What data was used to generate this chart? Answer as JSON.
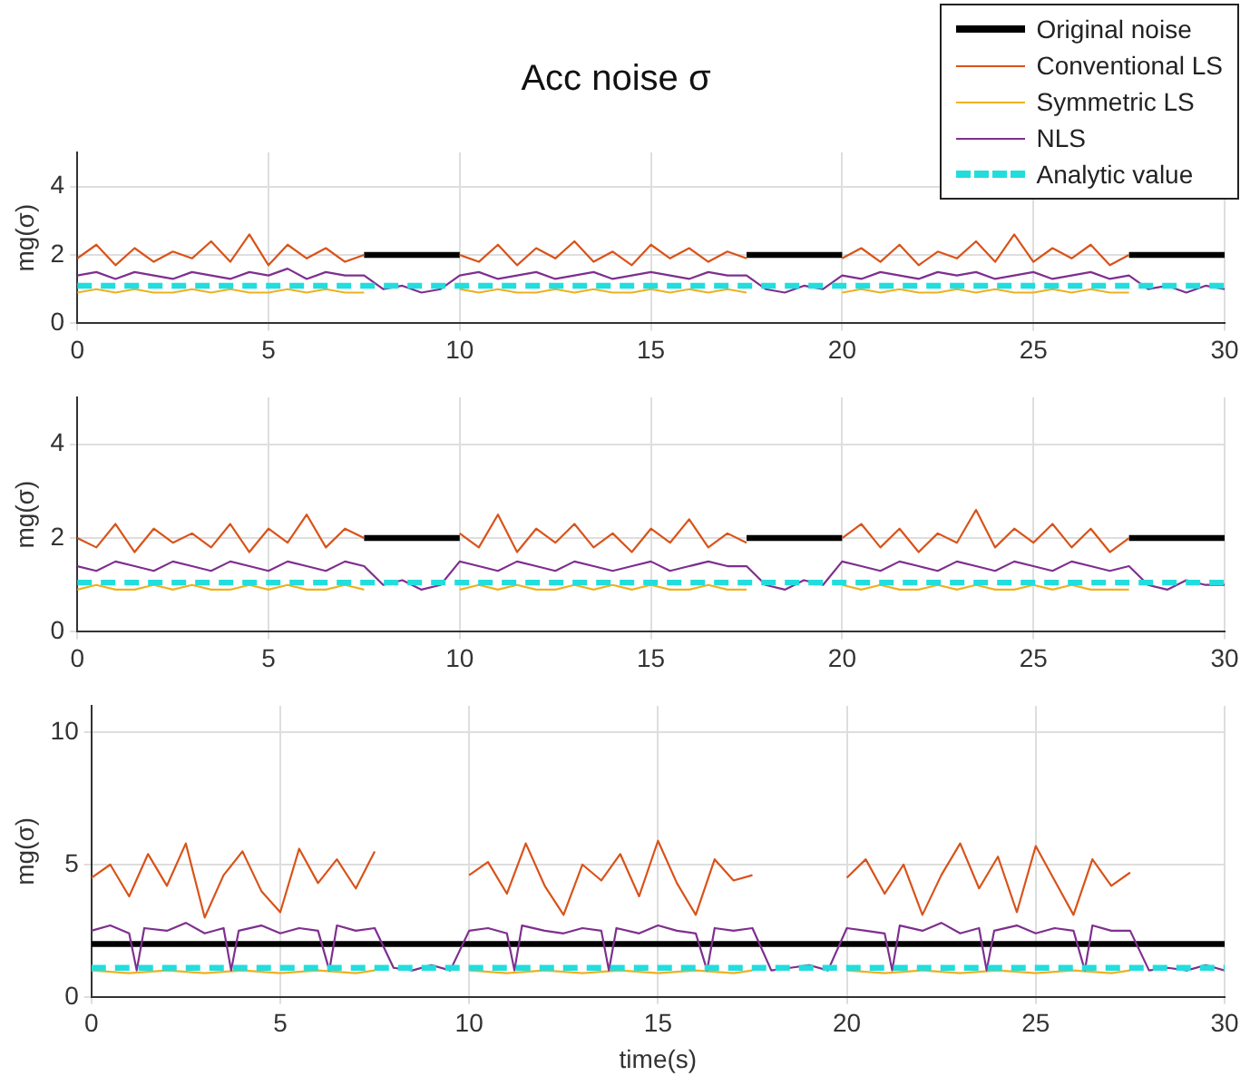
{
  "chart_data": [
    {
      "type": "line",
      "title": "Acc noise σ",
      "ylabel": "mg(σ)",
      "xlim": [
        0,
        30
      ],
      "xticks": [
        0,
        5,
        10,
        15,
        20,
        25,
        30
      ],
      "ylim": [
        0,
        5
      ],
      "yticks": [
        0,
        2,
        4
      ],
      "grid": true,
      "legend": "top right",
      "marker": "none",
      "series": [
        {
          "name": "Original noise",
          "color": "#000000",
          "x": [
            7.5,
            10,
            13.75,
            17.5,
            20,
            23.75,
            27.5,
            30
          ],
          "values": [
            2,
            2,
            null,
            2,
            2,
            null,
            2,
            2
          ]
        },
        {
          "name": "Conventional LS",
          "color": "#d95319",
          "x": [
            0,
            0.5,
            1,
            1.5,
            2,
            2.5,
            3,
            3.5,
            4,
            4.5,
            5,
            5.5,
            6,
            6.5,
            7,
            7.5,
            8.75,
            10,
            10.5,
            11,
            11.5,
            12,
            12.5,
            13,
            13.5,
            14,
            14.5,
            15,
            15.5,
            16,
            16.5,
            17,
            17.5,
            18.75,
            20,
            20.5,
            21,
            21.5,
            22,
            22.5,
            23,
            23.5,
            24,
            24.5,
            25,
            25.5,
            26,
            26.5,
            27,
            27.5
          ],
          "values": [
            1.9,
            2.3,
            1.7,
            2.2,
            1.8,
            2.1,
            1.9,
            2.4,
            1.8,
            2.6,
            1.7,
            2.3,
            1.9,
            2.2,
            1.8,
            2.0,
            null,
            2.0,
            1.8,
            2.3,
            1.7,
            2.2,
            1.9,
            2.4,
            1.8,
            2.1,
            1.7,
            2.3,
            1.9,
            2.2,
            1.8,
            2.1,
            1.9,
            null,
            1.9,
            2.2,
            1.8,
            2.3,
            1.7,
            2.1,
            1.9,
            2.4,
            1.8,
            2.6,
            1.8,
            2.2,
            1.9,
            2.3,
            1.7,
            2.0
          ]
        },
        {
          "name": "Symmetric LS",
          "color": "#edb120",
          "x": [
            0,
            0.5,
            1,
            1.5,
            2,
            2.5,
            3,
            3.5,
            4,
            4.5,
            5,
            5.5,
            6,
            6.5,
            7,
            7.5,
            8.75,
            10,
            10.5,
            11,
            11.5,
            12,
            12.5,
            13,
            13.5,
            14,
            14.5,
            15,
            15.5,
            16,
            16.5,
            17,
            17.5,
            18.75,
            20,
            20.5,
            21,
            21.5,
            22,
            22.5,
            23,
            23.5,
            24,
            24.5,
            25,
            25.5,
            26,
            26.5,
            27,
            27.5
          ],
          "values": [
            0.9,
            1.0,
            0.9,
            1.0,
            0.9,
            0.9,
            1.0,
            0.9,
            1.0,
            0.9,
            0.9,
            1.0,
            0.9,
            1.0,
            0.9,
            0.9,
            null,
            1.0,
            0.9,
            1.0,
            0.9,
            0.9,
            1.0,
            0.9,
            1.0,
            0.9,
            0.9,
            1.0,
            0.9,
            1.0,
            0.9,
            1.0,
            0.9,
            null,
            0.9,
            1.0,
            0.9,
            1.0,
            0.9,
            0.9,
            1.0,
            0.9,
            1.0,
            0.9,
            0.9,
            1.0,
            0.9,
            1.0,
            0.9,
            0.9
          ]
        },
        {
          "name": "NLS",
          "color": "#7e2f8e",
          "x": [
            0,
            0.5,
            1,
            1.5,
            2,
            2.5,
            3,
            3.5,
            4,
            4.5,
            5,
            5.5,
            6,
            6.5,
            7,
            7.5,
            8,
            8.5,
            9,
            9.5,
            10,
            10.5,
            11,
            11.5,
            12,
            12.5,
            13,
            13.5,
            14,
            14.5,
            15,
            15.5,
            16,
            16.5,
            17,
            17.5,
            18,
            18.5,
            19,
            19.5,
            20,
            20.5,
            21,
            21.5,
            22,
            22.5,
            23,
            23.5,
            24,
            24.5,
            25,
            25.5,
            26,
            26.5,
            27,
            27.5,
            28,
            28.5,
            29,
            29.5,
            30
          ],
          "values": [
            1.4,
            1.5,
            1.3,
            1.5,
            1.4,
            1.3,
            1.5,
            1.4,
            1.3,
            1.5,
            1.4,
            1.6,
            1.3,
            1.5,
            1.4,
            1.4,
            1.0,
            1.1,
            0.9,
            1.0,
            1.4,
            1.5,
            1.3,
            1.4,
            1.5,
            1.3,
            1.4,
            1.5,
            1.3,
            1.4,
            1.5,
            1.4,
            1.3,
            1.5,
            1.4,
            1.4,
            1.0,
            0.9,
            1.1,
            1.0,
            1.4,
            1.3,
            1.5,
            1.4,
            1.3,
            1.5,
            1.4,
            1.5,
            1.3,
            1.4,
            1.5,
            1.3,
            1.4,
            1.5,
            1.3,
            1.4,
            1.0,
            1.1,
            0.9,
            1.1,
            1.0
          ]
        },
        {
          "name": "Analytic value",
          "color": "#22dddd",
          "line_style": "dashed",
          "x": [
            0,
            30
          ],
          "values": [
            1.1,
            1.1
          ]
        }
      ]
    },
    {
      "type": "line",
      "ylabel": "mg(σ)",
      "xlim": [
        0,
        30
      ],
      "xticks": [
        0,
        5,
        10,
        15,
        20,
        25,
        30
      ],
      "ylim": [
        0,
        5
      ],
      "yticks": [
        0,
        2,
        4
      ],
      "grid": true,
      "marker": "none",
      "series": [
        {
          "color": "#000000",
          "x": [
            7.5,
            10,
            13.75,
            17.5,
            20,
            23.75,
            27.5,
            30
          ],
          "values": [
            2,
            2,
            null,
            2,
            2,
            null,
            2,
            2
          ]
        },
        {
          "color": "#d95319",
          "x": [
            0,
            0.5,
            1,
            1.5,
            2,
            2.5,
            3,
            3.5,
            4,
            4.5,
            5,
            5.5,
            6,
            6.5,
            7,
            7.5,
            8.75,
            10,
            10.5,
            11,
            11.5,
            12,
            12.5,
            13,
            13.5,
            14,
            14.5,
            15,
            15.5,
            16,
            16.5,
            17,
            17.5,
            18.75,
            20,
            20.5,
            21,
            21.5,
            22,
            22.5,
            23,
            23.5,
            24,
            24.5,
            25,
            25.5,
            26,
            26.5,
            27,
            27.5
          ],
          "values": [
            2.0,
            1.8,
            2.3,
            1.7,
            2.2,
            1.9,
            2.1,
            1.8,
            2.3,
            1.7,
            2.2,
            1.9,
            2.5,
            1.8,
            2.2,
            2.0,
            null,
            2.1,
            1.8,
            2.5,
            1.7,
            2.2,
            1.9,
            2.3,
            1.8,
            2.1,
            1.7,
            2.2,
            1.9,
            2.4,
            1.8,
            2.1,
            1.9,
            null,
            2.0,
            2.3,
            1.8,
            2.2,
            1.7,
            2.1,
            1.9,
            2.6,
            1.8,
            2.2,
            1.9,
            2.3,
            1.8,
            2.2,
            1.7,
            2.0
          ]
        },
        {
          "color": "#edb120",
          "x": [
            0,
            0.5,
            1,
            1.5,
            2,
            2.5,
            3,
            3.5,
            4,
            4.5,
            5,
            5.5,
            6,
            6.5,
            7,
            7.5,
            8.75,
            10,
            10.5,
            11,
            11.5,
            12,
            12.5,
            13,
            13.5,
            14,
            14.5,
            15,
            15.5,
            16,
            16.5,
            17,
            17.5,
            18.75,
            20,
            20.5,
            21,
            21.5,
            22,
            22.5,
            23,
            23.5,
            24,
            24.5,
            25,
            25.5,
            26,
            26.5,
            27,
            27.5
          ],
          "values": [
            0.9,
            1.0,
            0.9,
            0.9,
            1.0,
            0.9,
            1.0,
            0.9,
            0.9,
            1.0,
            0.9,
            1.0,
            0.9,
            0.9,
            1.0,
            0.9,
            null,
            0.9,
            1.0,
            0.9,
            1.0,
            0.9,
            0.9,
            1.0,
            0.9,
            1.0,
            0.9,
            1.0,
            0.9,
            0.9,
            1.0,
            0.9,
            0.9,
            null,
            1.0,
            0.9,
            1.0,
            0.9,
            0.9,
            1.0,
            0.9,
            1.0,
            0.9,
            0.9,
            1.0,
            0.9,
            1.0,
            0.9,
            0.9,
            0.9
          ]
        },
        {
          "color": "#7e2f8e",
          "x": [
            0,
            0.5,
            1,
            1.5,
            2,
            2.5,
            3,
            3.5,
            4,
            4.5,
            5,
            5.5,
            6,
            6.5,
            7,
            7.5,
            8,
            8.5,
            9,
            9.5,
            10,
            10.5,
            11,
            11.5,
            12,
            12.5,
            13,
            13.5,
            14,
            14.5,
            15,
            15.5,
            16,
            16.5,
            17,
            17.5,
            18,
            18.5,
            19,
            19.5,
            20,
            20.5,
            21,
            21.5,
            22,
            22.5,
            23,
            23.5,
            24,
            24.5,
            25,
            25.5,
            26,
            26.5,
            27,
            27.5,
            28,
            28.5,
            29,
            29.5,
            30
          ],
          "values": [
            1.4,
            1.3,
            1.5,
            1.4,
            1.3,
            1.5,
            1.4,
            1.3,
            1.5,
            1.4,
            1.3,
            1.5,
            1.4,
            1.3,
            1.5,
            1.4,
            1.0,
            1.1,
            0.9,
            1.0,
            1.5,
            1.4,
            1.3,
            1.5,
            1.4,
            1.3,
            1.5,
            1.4,
            1.3,
            1.4,
            1.5,
            1.3,
            1.4,
            1.5,
            1.4,
            1.4,
            1.0,
            0.9,
            1.1,
            1.0,
            1.5,
            1.4,
            1.3,
            1.5,
            1.4,
            1.3,
            1.5,
            1.4,
            1.3,
            1.5,
            1.4,
            1.3,
            1.5,
            1.4,
            1.3,
            1.4,
            1.0,
            0.9,
            1.1,
            1.0,
            1.0
          ]
        },
        {
          "color": "#22dddd",
          "line_style": "dashed",
          "x": [
            0,
            30
          ],
          "values": [
            1.05,
            1.05
          ]
        }
      ]
    },
    {
      "type": "line",
      "xlabel": "time(s)",
      "ylabel": "mg(σ)",
      "xlim": [
        0,
        30
      ],
      "xticks": [
        0,
        5,
        10,
        15,
        20,
        25,
        30
      ],
      "ylim": [
        0,
        11
      ],
      "yticks": [
        0,
        5,
        10
      ],
      "grid": true,
      "marker": "none",
      "series": [
        {
          "color": "#000000",
          "x": [
            0,
            30
          ],
          "values": [
            2,
            2
          ]
        },
        {
          "color": "#d95319",
          "x": [
            0,
            0.5,
            1,
            1.5,
            2,
            2.5,
            3,
            3.5,
            4,
            4.5,
            5,
            5.5,
            6,
            6.5,
            7,
            7.5,
            8.75,
            10,
            10.5,
            11,
            11.5,
            12,
            12.5,
            13,
            13.5,
            14,
            14.5,
            15,
            15.5,
            16,
            16.5,
            17,
            17.5,
            18.75,
            20,
            20.5,
            21,
            21.5,
            22,
            22.5,
            23,
            23.5,
            24,
            24.5,
            25,
            25.5,
            26,
            26.5,
            27,
            27.5
          ],
          "values": [
            4.5,
            5.0,
            3.8,
            5.4,
            4.2,
            5.8,
            3.0,
            4.6,
            5.5,
            4.0,
            3.2,
            5.6,
            4.3,
            5.2,
            4.1,
            5.5,
            null,
            4.6,
            5.1,
            3.9,
            5.8,
            4.2,
            3.1,
            5.0,
            4.4,
            5.4,
            3.8,
            5.9,
            4.3,
            3.1,
            5.2,
            4.4,
            4.6,
            null,
            4.5,
            5.2,
            3.9,
            5.0,
            3.1,
            4.6,
            5.8,
            4.1,
            5.3,
            3.2,
            5.7,
            4.4,
            3.1,
            5.2,
            4.2,
            4.7
          ]
        },
        {
          "color": "#edb120",
          "x": [
            0,
            1,
            2,
            3,
            4,
            5,
            6,
            7,
            7.5,
            8.75,
            10,
            11,
            12,
            13,
            14,
            15,
            16,
            17,
            17.5,
            18.75,
            20,
            21,
            22,
            23,
            24,
            25,
            26,
            27,
            27.5
          ],
          "values": [
            1.0,
            0.9,
            1.0,
            0.9,
            1.0,
            0.9,
            1.0,
            0.9,
            1.0,
            null,
            1.0,
            0.9,
            1.0,
            0.9,
            1.0,
            0.9,
            1.0,
            0.9,
            1.0,
            null,
            1.0,
            0.9,
            1.0,
            0.9,
            1.0,
            0.9,
            1.0,
            0.9,
            1.0
          ]
        },
        {
          "color": "#7e2f8e",
          "x": [
            0,
            0.5,
            1,
            1.2,
            1.4,
            2,
            2.5,
            3,
            3.5,
            3.7,
            3.9,
            4.5,
            5,
            5.5,
            6,
            6.3,
            6.5,
            7,
            7.5,
            8,
            8.5,
            9,
            9.5,
            10,
            10.5,
            11,
            11.2,
            11.4,
            12,
            12.5,
            13,
            13.5,
            13.7,
            13.9,
            14.5,
            15,
            15.5,
            16,
            16.3,
            16.5,
            17,
            17.5,
            18,
            18.5,
            19,
            19.5,
            20,
            20.5,
            21,
            21.2,
            21.4,
            22,
            22.5,
            23,
            23.5,
            23.7,
            23.9,
            24.5,
            25,
            25.5,
            26,
            26.3,
            26.5,
            27,
            27.5,
            28,
            28.5,
            29,
            29.5,
            30
          ],
          "values": [
            2.5,
            2.7,
            2.4,
            1.0,
            2.6,
            2.5,
            2.8,
            2.4,
            2.6,
            1.0,
            2.5,
            2.7,
            2.4,
            2.6,
            2.5,
            1.0,
            2.7,
            2.5,
            2.6,
            1.1,
            1.0,
            1.2,
            1.0,
            2.5,
            2.6,
            2.4,
            1.0,
            2.7,
            2.5,
            2.4,
            2.6,
            2.5,
            1.0,
            2.6,
            2.4,
            2.7,
            2.5,
            2.4,
            1.0,
            2.6,
            2.5,
            2.6,
            1.0,
            1.1,
            1.2,
            1.0,
            2.6,
            2.5,
            2.4,
            1.0,
            2.7,
            2.5,
            2.8,
            2.4,
            2.6,
            1.0,
            2.5,
            2.7,
            2.4,
            2.6,
            2.5,
            1.0,
            2.7,
            2.5,
            2.5,
            1.0,
            1.1,
            1.0,
            1.2,
            1.0
          ]
        },
        {
          "color": "#22dddd",
          "line_style": "dashed",
          "x": [
            0,
            30
          ],
          "values": [
            1.1,
            1.1
          ]
        }
      ]
    }
  ]
}
